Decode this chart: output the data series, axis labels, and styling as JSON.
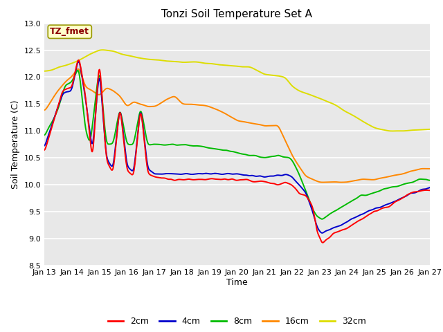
{
  "title": "Tonzi Soil Temperature Set A",
  "xlabel": "Time",
  "ylabel": "Soil Temperature (C)",
  "ylim": [
    8.5,
    13.0
  ],
  "xlim": [
    0,
    336
  ],
  "xtick_labels": [
    "Jan 13",
    "Jan 14",
    "Jan 15",
    "Jan 16",
    "Jan 17",
    "Jan 18",
    "Jan 19",
    "Jan 20",
    "Jan 21",
    "Jan 22",
    "Jan 23",
    "Jan 24",
    "Jan 25",
    "Jan 26",
    "Jan 27"
  ],
  "xtick_positions": [
    0,
    24,
    48,
    72,
    96,
    120,
    144,
    168,
    192,
    216,
    240,
    264,
    288,
    312,
    336
  ],
  "ytick_labels": [
    "8.5",
    "9.0",
    "9.5",
    "10.0",
    "10.5",
    "11.0",
    "11.5",
    "12.0",
    "12.5",
    "13.0"
  ],
  "ytick_values": [
    8.5,
    9.0,
    9.5,
    10.0,
    10.5,
    11.0,
    11.5,
    12.0,
    12.5,
    13.0
  ],
  "annotation_text": "TZ_fmet",
  "annotation_color": "#8B0000",
  "annotation_bg": "#FFFFCC",
  "annotation_border": "#999900",
  "line_colors": [
    "#FF0000",
    "#0000CC",
    "#00BB00",
    "#FF8800",
    "#DDDD00"
  ],
  "line_labels": [
    "2cm",
    "4cm",
    "8cm",
    "16cm",
    "32cm"
  ],
  "bg_color": "#E8E8E8",
  "grid_color": "#FFFFFF",
  "fig_bg": "#FFFFFF",
  "title_fontsize": 11,
  "tick_fontsize": 8,
  "label_fontsize": 9
}
